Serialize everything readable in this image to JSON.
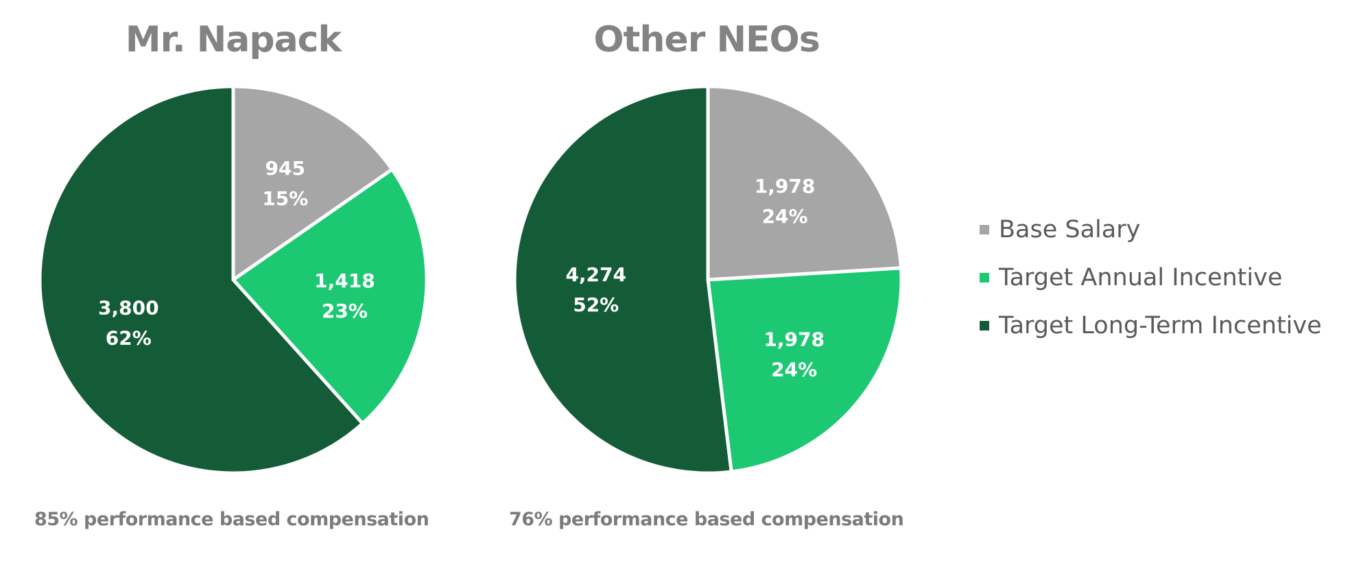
{
  "chart_data": [
    {
      "type": "pie",
      "title": "Mr. Napack",
      "categories": [
        "Base Salary",
        "Target Annual Incentive",
        "Target Long-Term Incentive"
      ],
      "values": [
        945,
        1418,
        3800
      ],
      "percent_labels": [
        "15%",
        "23%",
        "62%"
      ],
      "value_labels": [
        "945",
        "1,418",
        "3,800"
      ],
      "footnote": "85% performance based compensation"
    },
    {
      "type": "pie",
      "title": "Other NEOs",
      "categories": [
        "Base Salary",
        "Target Annual Incentive",
        "Target Long-Term Incentive"
      ],
      "values": [
        1978,
        1978,
        4274
      ],
      "percent_labels": [
        "24%",
        "24%",
        "52%"
      ],
      "value_labels": [
        "1,978",
        "1,978",
        "4,274"
      ],
      "footnote": "76% performance based compensation"
    }
  ],
  "legend": {
    "position": "right",
    "items": [
      {
        "label": "Base Salary",
        "color": "#a6a6a6"
      },
      {
        "label": "Target Annual Incentive",
        "color": "#1dc873"
      },
      {
        "label": "Target Long-Term Incentive",
        "color": "#135c37"
      }
    ]
  },
  "colors": {
    "title": "#838383",
    "note": "#7c7c7c",
    "label": "#ffffff"
  }
}
